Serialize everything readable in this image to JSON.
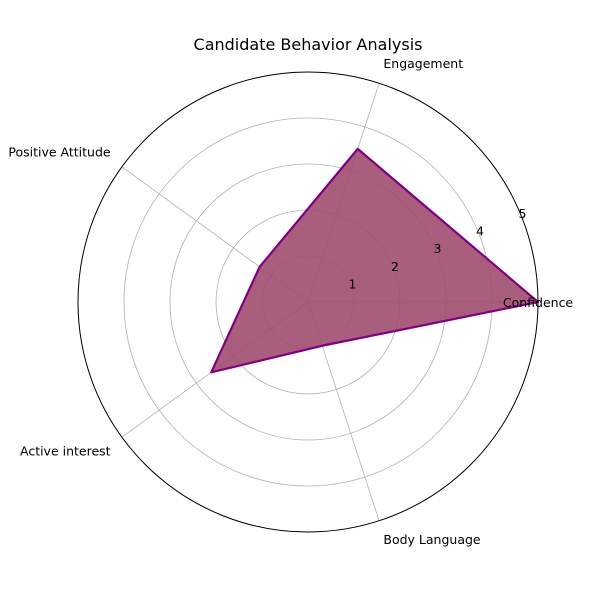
{
  "chart_data": {
    "type": "radar",
    "title": "Candidate Behavior Analysis",
    "categories": [
      "Confidence",
      "Engagement",
      "Positive Attitude",
      "Active interest",
      "Body Language"
    ],
    "series": [
      {
        "values": [
          5,
          3.5,
          1.3,
          2.6,
          1.0
        ]
      }
    ],
    "rlim": [
      0,
      5
    ],
    "rticks": [
      "1",
      "2",
      "3",
      "4",
      "5"
    ],
    "grid": true,
    "colors": {
      "fill": "#9e4d6e",
      "line": "#800080",
      "grid": "#b0b0b0",
      "frame": "#000000"
    }
  }
}
